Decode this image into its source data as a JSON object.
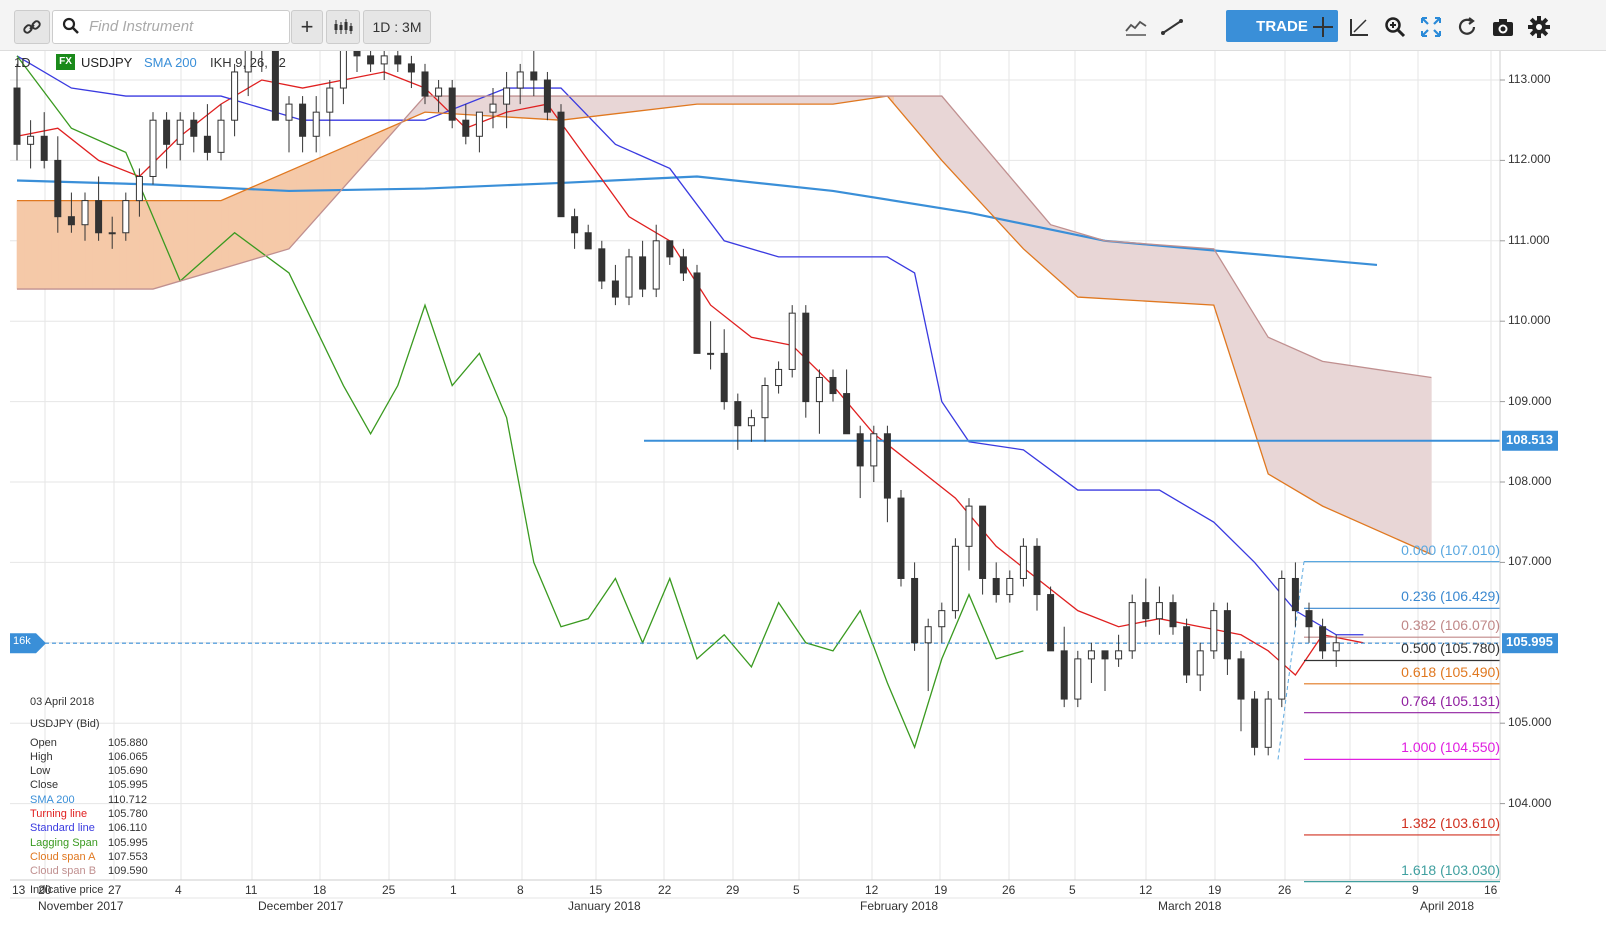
{
  "toolbar": {
    "search_placeholder": "Find Instrument",
    "timeframe": "1D : 3M",
    "trade_label": "TRADE",
    "icons": [
      "link-icon",
      "search-icon",
      "plus-icon",
      "candles-icon",
      "chart-type-icon",
      "draw-line-icon",
      "crosshair-icon",
      "fib-icon",
      "zoom-icon",
      "fit-icon",
      "refresh-icon",
      "camera-icon",
      "gear-icon"
    ]
  },
  "legend": {
    "period": "1D",
    "fx_badge": "FX",
    "symbol": "USDJPY",
    "sma_label": "SMA 200",
    "ikh_label": "IKH 9, 26, 52"
  },
  "info_panel": {
    "date": "03 April 2018",
    "instrument": "USDJPY (Bid)",
    "rows": [
      {
        "label": "Open",
        "value": "105.880",
        "color": "#333333"
      },
      {
        "label": "High",
        "value": "106.065",
        "color": "#333333"
      },
      {
        "label": "Low",
        "value": "105.690",
        "color": "#333333"
      },
      {
        "label": "Close",
        "value": "105.995",
        "color": "#333333"
      },
      {
        "label": "SMA 200",
        "value": "110.712",
        "color": "#3a8fd8"
      },
      {
        "label": "Turning line",
        "value": "105.780",
        "color": "#e02020"
      },
      {
        "label": "Standard line",
        "value": "106.110",
        "color": "#3a3ae0"
      },
      {
        "label": "Lagging Span",
        "value": "105.995",
        "color": "#3a9a20"
      },
      {
        "label": "Cloud span A",
        "value": "107.553",
        "color": "#e07820"
      },
      {
        "label": "Cloud span B",
        "value": "109.590",
        "color": "#c09090"
      }
    ],
    "footer": "Indicative price"
  },
  "price_axis": {
    "ticks": [
      "113.000",
      "112.000",
      "111.000",
      "110.000",
      "109.000",
      "108.000",
      "107.000",
      "105.000",
      "104.000"
    ]
  },
  "markers": {
    "horizontal_line": "108.513",
    "current_price": "105.995",
    "left_badge": "16k"
  },
  "fibonacci": [
    {
      "label": "0.000 (107.010)",
      "level": 107.01,
      "color": "#5aa8e0"
    },
    {
      "label": "0.236 (106.429)",
      "level": 106.429,
      "color": "#3a88d0"
    },
    {
      "label": "0.382 (106.070)",
      "level": 106.07,
      "color": "#c08888"
    },
    {
      "label": "0.500 (105.780)",
      "level": 105.78,
      "color": "#333333"
    },
    {
      "label": "0.618 (105.490)",
      "level": 105.49,
      "color": "#e07820"
    },
    {
      "label": "0.764 (105.131)",
      "level": 105.131,
      "color": "#9020a0"
    },
    {
      "label": "1.000 (104.550)",
      "level": 104.55,
      "color": "#e020e0"
    },
    {
      "label": "1.382 (103.610)",
      "level": 103.61,
      "color": "#d03020"
    },
    {
      "label": "1.618 (103.030)",
      "level": 103.03,
      "color": "#40a0a0"
    }
  ],
  "date_axis": {
    "days": [
      "13",
      "20",
      "27",
      "4",
      "11",
      "18",
      "25",
      "1",
      "8",
      "15",
      "22",
      "29",
      "5",
      "12",
      "19",
      "26",
      "5",
      "12",
      "19",
      "26",
      "2",
      "9",
      "16"
    ],
    "months": [
      "November 2017",
      "December 2017",
      "January 2018",
      "February 2018",
      "March 2018",
      "April 2018"
    ]
  },
  "chart_data": {
    "type": "candlestick",
    "instrument": "USDJPY",
    "timeframe": "1D",
    "ylim": [
      102.9,
      113.4
    ],
    "candles": [
      [
        112.9,
        113.2,
        112.0,
        112.2
      ],
      [
        112.2,
        112.5,
        111.9,
        112.3
      ],
      [
        112.3,
        112.6,
        111.9,
        112.0
      ],
      [
        112.0,
        112.3,
        111.1,
        111.3
      ],
      [
        111.3,
        111.6,
        111.1,
        111.2
      ],
      [
        111.2,
        111.6,
        111.0,
        111.5
      ],
      [
        111.5,
        111.8,
        111.0,
        111.1
      ],
      [
        111.1,
        111.3,
        110.9,
        111.1
      ],
      [
        111.1,
        111.6,
        111.0,
        111.5
      ],
      [
        111.5,
        111.9,
        111.3,
        111.8
      ],
      [
        111.8,
        112.6,
        111.7,
        112.5
      ],
      [
        112.5,
        112.6,
        111.9,
        112.2
      ],
      [
        112.2,
        112.6,
        112.0,
        112.5
      ],
      [
        112.5,
        112.6,
        112.1,
        112.3
      ],
      [
        112.3,
        112.7,
        112.0,
        112.1
      ],
      [
        112.1,
        112.7,
        112.0,
        112.5
      ],
      [
        112.5,
        113.2,
        112.3,
        113.1
      ],
      [
        113.1,
        113.6,
        112.8,
        113.4
      ],
      [
        113.4,
        113.7,
        113.1,
        113.5
      ],
      [
        113.5,
        113.6,
        112.5,
        112.5
      ],
      [
        112.5,
        112.8,
        112.1,
        112.7
      ],
      [
        112.7,
        112.8,
        112.1,
        112.3
      ],
      [
        112.3,
        112.8,
        112.1,
        112.6
      ],
      [
        112.6,
        113.0,
        112.3,
        112.9
      ],
      [
        112.9,
        113.6,
        112.7,
        113.5
      ],
      [
        113.5,
        113.6,
        113.1,
        113.3
      ],
      [
        113.3,
        113.5,
        113.1,
        113.2
      ],
      [
        113.2,
        113.5,
        113.0,
        113.3
      ],
      [
        113.3,
        113.4,
        113.1,
        113.2
      ],
      [
        113.2,
        113.3,
        112.9,
        113.1
      ],
      [
        113.1,
        113.2,
        112.7,
        112.8
      ],
      [
        112.8,
        113.0,
        112.6,
        112.9
      ],
      [
        112.9,
        113.0,
        112.4,
        112.5
      ],
      [
        112.5,
        112.7,
        112.2,
        112.3
      ],
      [
        112.3,
        112.6,
        112.1,
        112.6
      ],
      [
        112.6,
        112.9,
        112.4,
        112.7
      ],
      [
        112.7,
        113.1,
        112.4,
        112.9
      ],
      [
        112.9,
        113.2,
        112.7,
        113.1
      ],
      [
        113.1,
        113.4,
        112.8,
        113.0
      ],
      [
        113.0,
        113.1,
        112.5,
        112.6
      ],
      [
        112.6,
        112.7,
        111.3,
        111.3
      ],
      [
        111.3,
        111.4,
        110.9,
        111.1
      ],
      [
        111.1,
        111.2,
        110.9,
        110.9
      ],
      [
        110.9,
        111.0,
        110.4,
        110.5
      ],
      [
        110.5,
        110.7,
        110.2,
        110.3
      ],
      [
        110.3,
        110.9,
        110.2,
        110.8
      ],
      [
        110.8,
        111.0,
        110.3,
        110.4
      ],
      [
        110.4,
        111.2,
        110.3,
        111.0
      ],
      [
        111.0,
        111.0,
        110.7,
        110.8
      ],
      [
        110.8,
        110.9,
        110.5,
        110.6
      ],
      [
        110.6,
        110.7,
        109.6,
        109.6
      ],
      [
        109.6,
        110.0,
        109.4,
        109.6
      ],
      [
        109.6,
        109.9,
        108.9,
        109.0
      ],
      [
        109.0,
        109.1,
        108.4,
        108.7
      ],
      [
        108.7,
        108.9,
        108.5,
        108.8
      ],
      [
        108.8,
        109.3,
        108.5,
        109.2
      ],
      [
        109.2,
        109.5,
        109.1,
        109.4
      ],
      [
        109.4,
        110.2,
        109.3,
        110.1
      ],
      [
        110.1,
        110.2,
        108.8,
        109.0
      ],
      [
        109.0,
        109.4,
        108.6,
        109.3
      ],
      [
        109.3,
        109.4,
        109.0,
        109.1
      ],
      [
        109.1,
        109.4,
        108.6,
        108.6
      ],
      [
        108.6,
        108.7,
        107.8,
        108.2
      ],
      [
        108.2,
        108.7,
        108.0,
        108.6
      ],
      [
        108.6,
        108.7,
        107.5,
        107.8
      ],
      [
        107.8,
        107.9,
        106.7,
        106.8
      ],
      [
        106.8,
        107.0,
        105.9,
        106.0
      ],
      [
        106.0,
        106.3,
        105.4,
        106.2
      ],
      [
        106.2,
        106.5,
        106.0,
        106.4
      ],
      [
        106.4,
        107.3,
        106.3,
        107.2
      ],
      [
        107.2,
        107.8,
        106.9,
        107.7
      ],
      [
        107.7,
        107.7,
        106.6,
        106.8
      ],
      [
        106.8,
        107.0,
        106.5,
        106.6
      ],
      [
        106.6,
        106.9,
        106.5,
        106.8
      ],
      [
        106.8,
        107.3,
        106.7,
        107.2
      ],
      [
        107.2,
        107.3,
        106.4,
        106.6
      ],
      [
        106.6,
        106.7,
        105.9,
        105.9
      ],
      [
        105.9,
        106.2,
        105.2,
        105.3
      ],
      [
        105.3,
        105.9,
        105.2,
        105.8
      ],
      [
        105.8,
        106.0,
        105.5,
        105.9
      ],
      [
        105.9,
        105.9,
        105.4,
        105.8
      ],
      [
        105.8,
        106.1,
        105.7,
        105.9
      ],
      [
        105.9,
        106.6,
        105.8,
        106.5
      ],
      [
        106.5,
        106.8,
        106.2,
        106.3
      ],
      [
        106.3,
        106.7,
        106.1,
        106.5
      ],
      [
        106.5,
        106.6,
        106.1,
        106.2
      ],
      [
        106.2,
        106.3,
        105.5,
        105.6
      ],
      [
        105.6,
        106.0,
        105.4,
        105.9
      ],
      [
        105.9,
        106.5,
        105.8,
        106.4
      ],
      [
        106.4,
        106.5,
        105.6,
        105.8
      ],
      [
        105.8,
        105.9,
        104.9,
        105.3
      ],
      [
        105.3,
        105.4,
        104.6,
        104.7
      ],
      [
        104.7,
        105.4,
        104.6,
        105.3
      ],
      [
        105.3,
        106.9,
        105.2,
        106.8
      ],
      [
        106.8,
        107.0,
        106.2,
        106.4
      ],
      [
        106.4,
        106.5,
        106.0,
        106.2
      ],
      [
        106.2,
        106.3,
        105.8,
        105.9
      ],
      [
        105.9,
        106.1,
        105.7,
        106.0
      ]
    ],
    "series": [
      {
        "name": "SMA 200",
        "color": "#3a8fd8",
        "values": [
          [
            0,
            111.75
          ],
          [
            10,
            111.7
          ],
          [
            20,
            111.62
          ],
          [
            30,
            111.65
          ],
          [
            40,
            111.72
          ],
          [
            50,
            111.8
          ],
          [
            60,
            111.62
          ],
          [
            70,
            111.35
          ],
          [
            80,
            111.0
          ],
          [
            90,
            110.85
          ],
          [
            100,
            110.7
          ]
        ]
      },
      {
        "name": "Turning line",
        "color": "#e02020",
        "values": [
          [
            0,
            112.3
          ],
          [
            3,
            112.4
          ],
          [
            6,
            112.0
          ],
          [
            9,
            111.8
          ],
          [
            12,
            112.3
          ],
          [
            15,
            112.7
          ],
          [
            18,
            113.0
          ],
          [
            21,
            112.9
          ],
          [
            24,
            113.0
          ],
          [
            27,
            113.1
          ],
          [
            30,
            112.9
          ],
          [
            33,
            112.4
          ],
          [
            36,
            112.6
          ],
          [
            39,
            112.7
          ],
          [
            42,
            112.0
          ],
          [
            45,
            111.3
          ],
          [
            48,
            111.0
          ],
          [
            51,
            110.2
          ],
          [
            54,
            109.8
          ],
          [
            57,
            109.7
          ],
          [
            60,
            109.2
          ],
          [
            63,
            108.6
          ],
          [
            66,
            108.2
          ],
          [
            69,
            107.8
          ],
          [
            72,
            107.2
          ],
          [
            75,
            106.8
          ],
          [
            78,
            106.4
          ],
          [
            81,
            106.2
          ],
          [
            84,
            106.3
          ],
          [
            87,
            106.2
          ],
          [
            90,
            106.1
          ],
          [
            92,
            105.9
          ],
          [
            94,
            105.6
          ],
          [
            96,
            106.1
          ],
          [
            99,
            106.0
          ]
        ]
      },
      {
        "name": "Standard line",
        "color": "#3a3ae0",
        "values": [
          [
            0,
            113.3
          ],
          [
            4,
            112.9
          ],
          [
            8,
            112.8
          ],
          [
            15,
            112.8
          ],
          [
            21,
            112.5
          ],
          [
            30,
            112.5
          ],
          [
            36,
            112.9
          ],
          [
            40,
            112.9
          ],
          [
            44,
            112.2
          ],
          [
            48,
            111.9
          ],
          [
            52,
            111.0
          ],
          [
            56,
            110.8
          ],
          [
            64,
            110.8
          ],
          [
            66,
            110.6
          ],
          [
            68,
            109.0
          ],
          [
            70,
            108.5
          ],
          [
            74,
            108.4
          ],
          [
            78,
            107.9
          ],
          [
            84,
            107.9
          ],
          [
            88,
            107.5
          ],
          [
            91,
            107.0
          ],
          [
            94,
            106.4
          ],
          [
            97,
            106.1
          ],
          [
            99,
            106.1
          ]
        ]
      },
      {
        "name": "Lagging Span",
        "color": "#3a9a20",
        "values": [
          [
            0,
            113.3
          ],
          [
            4,
            112.4
          ],
          [
            8,
            112.1
          ],
          [
            12,
            110.5
          ],
          [
            16,
            111.1
          ],
          [
            20,
            110.6
          ],
          [
            24,
            109.2
          ],
          [
            26,
            108.6
          ],
          [
            28,
            109.2
          ],
          [
            30,
            110.2
          ],
          [
            32,
            109.2
          ],
          [
            34,
            109.6
          ],
          [
            36,
            108.8
          ],
          [
            38,
            107.0
          ],
          [
            40,
            106.2
          ],
          [
            42,
            106.3
          ],
          [
            44,
            106.8
          ],
          [
            46,
            106.0
          ],
          [
            48,
            106.8
          ],
          [
            50,
            105.8
          ],
          [
            52,
            106.1
          ],
          [
            54,
            105.7
          ],
          [
            56,
            106.5
          ],
          [
            58,
            106.0
          ],
          [
            60,
            105.9
          ],
          [
            62,
            106.4
          ],
          [
            64,
            105.5
          ],
          [
            66,
            104.7
          ],
          [
            68,
            105.8
          ],
          [
            70,
            106.6
          ],
          [
            72,
            105.8
          ],
          [
            74,
            105.9
          ]
        ]
      },
      {
        "name": "Cloud span A",
        "color": "#e07820",
        "values": [
          [
            0,
            111.5
          ],
          [
            15,
            111.5
          ],
          [
            30,
            112.6
          ],
          [
            40,
            112.5
          ],
          [
            50,
            112.7
          ],
          [
            60,
            112.7
          ],
          [
            64,
            112.8
          ],
          [
            68,
            112.0
          ],
          [
            74,
            110.9
          ],
          [
            78,
            110.3
          ],
          [
            88,
            110.2
          ],
          [
            92,
            108.1
          ],
          [
            96,
            107.7
          ],
          [
            104,
            107.1
          ]
        ]
      },
      {
        "name": "Cloud span B",
        "color": "#c09090",
        "values": [
          [
            0,
            110.4
          ],
          [
            10,
            110.4
          ],
          [
            20,
            110.9
          ],
          [
            30,
            112.8
          ],
          [
            40,
            112.8
          ],
          [
            50,
            112.8
          ],
          [
            60,
            112.8
          ],
          [
            68,
            112.8
          ],
          [
            72,
            112.0
          ],
          [
            76,
            111.2
          ],
          [
            80,
            111.0
          ],
          [
            88,
            110.9
          ],
          [
            92,
            109.8
          ],
          [
            96,
            109.5
          ],
          [
            104,
            109.3
          ]
        ]
      }
    ]
  }
}
